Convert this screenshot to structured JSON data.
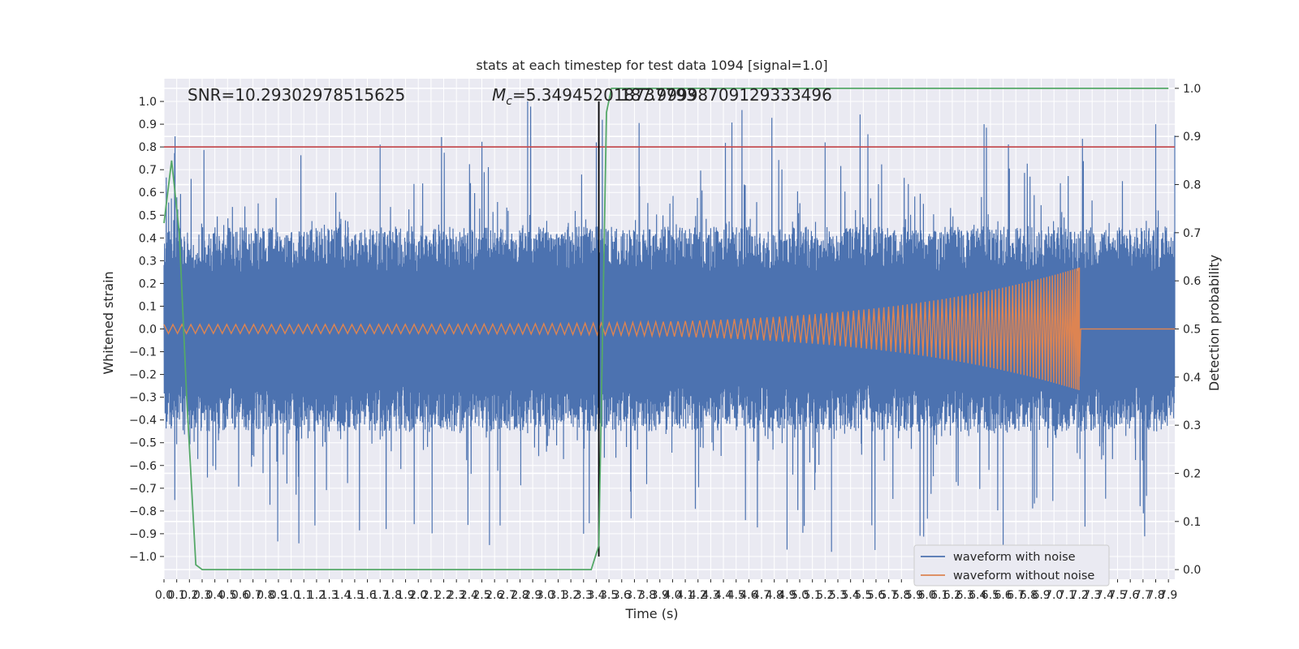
{
  "chart_data": {
    "type": "line",
    "title": "stats at each timestep for test data 1094 [signal=1.0]",
    "xlabel": "Time (s)",
    "ylabel": "Whitened strain",
    "ylabel_right": "Detection probability",
    "xlim": [
      0.0,
      7.95
    ],
    "ylim": [
      -1.1,
      1.1
    ],
    "ylim_right": [
      -0.02,
      1.02
    ],
    "x_ticks": [
      "0.0",
      "0.1",
      "0.2",
      "0.3",
      "0.4",
      "0.5",
      "0.6",
      "0.7",
      "0.8",
      "0.9",
      "1.0",
      "1.1",
      "1.2",
      "1.3",
      "1.4",
      "1.5",
      "1.6",
      "1.7",
      "1.8",
      "1.9",
      "2.0",
      "2.1",
      "2.2",
      "2.3",
      "2.4",
      "2.5",
      "2.6",
      "2.7",
      "2.8",
      "2.9",
      "3.0",
      "3.1",
      "3.2",
      "3.3",
      "3.4",
      "3.5",
      "3.6",
      "3.7",
      "3.8",
      "3.9",
      "4.0",
      "4.1",
      "4.2",
      "4.3",
      "4.4",
      "4.5",
      "4.6",
      "4.7",
      "4.8",
      "4.9",
      "5.0",
      "5.1",
      "5.2",
      "5.3",
      "5.4",
      "5.5",
      "5.6",
      "5.7",
      "5.8",
      "5.9",
      "6.0",
      "6.1",
      "6.2",
      "6.3",
      "6.4",
      "6.5",
      "6.6",
      "6.7",
      "6.8",
      "6.9",
      "7.0",
      "7.1",
      "7.2",
      "7.3",
      "7.4",
      "7.5",
      "7.6",
      "7.7",
      "7.8",
      "7.9"
    ],
    "y_ticks_left": [
      "1.0",
      "0.9",
      "0.8",
      "0.7",
      "0.6",
      "0.5",
      "0.4",
      "0.3",
      "0.2",
      "0.1",
      "0.0",
      "−0.1",
      "−0.2",
      "−0.3",
      "−0.4",
      "−0.5",
      "−0.6",
      "−0.7",
      "−0.8",
      "−0.9",
      "−1.0"
    ],
    "y_ticks_right": [
      "1.0",
      "0.9",
      "0.8",
      "0.7",
      "0.6",
      "0.5",
      "0.4",
      "0.3",
      "0.2",
      "0.1",
      "0.0"
    ],
    "annotations": {
      "snr": "SNR=10.29302978515625",
      "mc_prefix": "M",
      "mc_sub": "c",
      "mc_text": "=5.349452018737793",
      "mc_overlap": "187.99998709129333496"
    },
    "threshold_y_left": 0.8,
    "threshold_color": "#c44e52",
    "merger_time": 3.42,
    "merger_color": "#000000",
    "noise_envelope": 0.45,
    "clean_signal": {
      "amp_start": 0.02,
      "amp_end": 0.27,
      "end_time": 7.2
    },
    "series": [
      {
        "name": "waveform with noise",
        "color": "#4c72b0"
      },
      {
        "name": "waveform without noise",
        "color": "#dd8452"
      },
      {
        "name": "detection probability",
        "color": "#55a868",
        "axis": "right",
        "x": [
          0.0,
          0.06,
          0.12,
          0.18,
          0.25,
          0.3,
          0.6,
          1.0,
          1.5,
          2.0,
          2.5,
          3.0,
          3.36,
          3.42,
          3.48,
          3.52,
          3.7,
          4.5,
          5.5,
          6.5,
          7.5,
          7.9
        ],
        "values": [
          0.72,
          0.85,
          0.7,
          0.35,
          0.01,
          0.0,
          0.0,
          0.0,
          0.0,
          0.0,
          0.0,
          0.0,
          0.0,
          0.05,
          0.95,
          1.0,
          1.0,
          1.0,
          1.0,
          1.0,
          1.0,
          1.0
        ]
      }
    ],
    "legend": [
      {
        "label": "waveform with noise",
        "color": "#4c72b0"
      },
      {
        "label": "waveform without noise",
        "color": "#dd8452"
      }
    ],
    "legend_position": "lower-right",
    "grid": true,
    "colors": {
      "plot_bg": "#eaeaf2",
      "grid": "#ffffff"
    }
  }
}
